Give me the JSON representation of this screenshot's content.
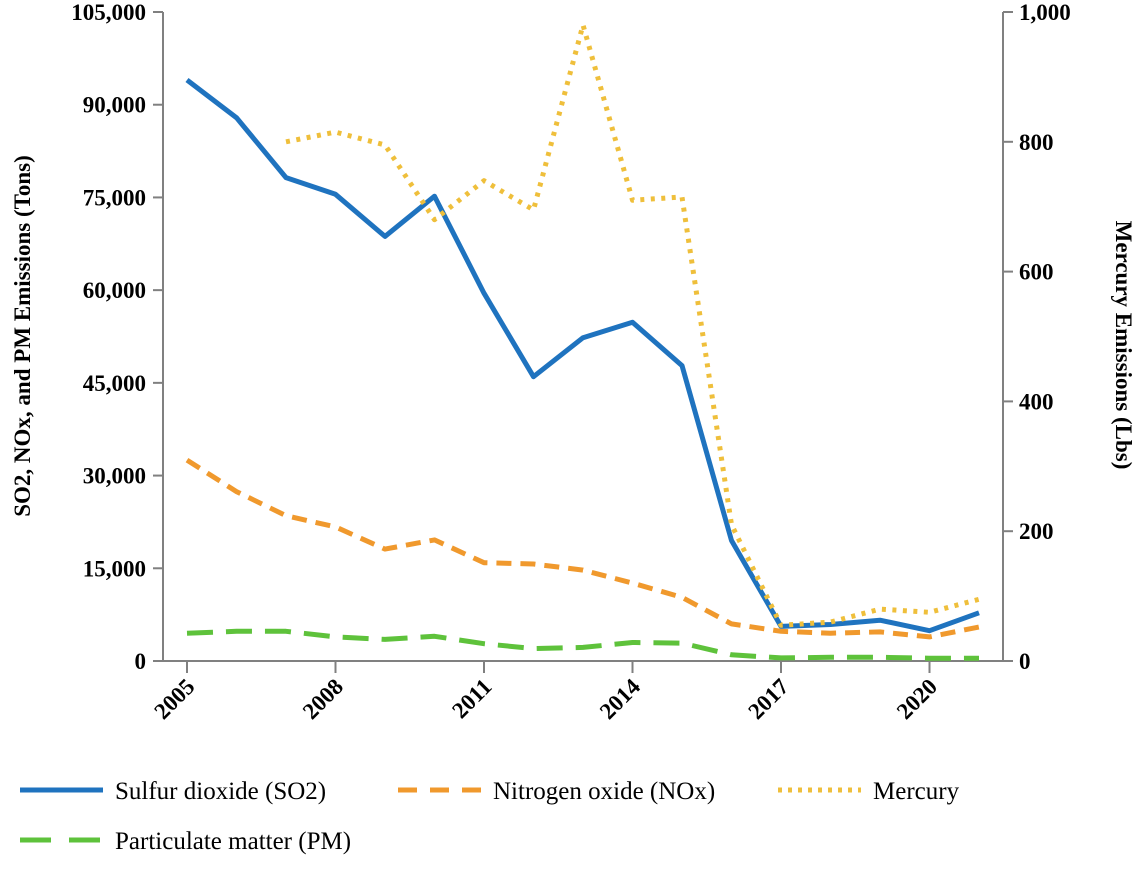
{
  "chart_data": {
    "type": "line",
    "title": "",
    "x": [
      2005,
      2006,
      2007,
      2008,
      2009,
      2010,
      2011,
      2012,
      2013,
      2014,
      2015,
      2016,
      2017,
      2018,
      2019,
      2020,
      2021
    ],
    "x_tick_years": [
      2005,
      2008,
      2011,
      2014,
      2017,
      2020
    ],
    "x_tick_labels": [
      "2005",
      "2008",
      "2011",
      "2014",
      "2017",
      "2020"
    ],
    "left_axis": {
      "label": "SO2, NOx, and PM Emissions (Tons)",
      "min": 0,
      "max": 105000,
      "tick_values": [
        0,
        15000,
        30000,
        45000,
        60000,
        75000,
        90000,
        105000
      ],
      "tick_labels": [
        "0",
        "15,000",
        "30,000",
        "45,000",
        "60,000",
        "75,000",
        "90,000",
        "105,000"
      ]
    },
    "right_axis": {
      "label": "Mercury Emissions (Lbs)",
      "min": 0,
      "max": 1000,
      "tick_values": [
        0,
        200,
        400,
        600,
        800,
        1000
      ],
      "tick_labels": [
        "0",
        "200",
        "400",
        "600",
        "800",
        "1,000"
      ]
    },
    "series": [
      {
        "name": "Sulfur dioxide (SO2)",
        "axis": "left",
        "style": "solid",
        "color": "#1F73BF",
        "values": [
          94000,
          87900,
          78200,
          75500,
          68700,
          75200,
          59500,
          46000,
          52300,
          54800,
          47800,
          19500,
          5600,
          5900,
          6600,
          4900,
          7800
        ]
      },
      {
        "name": "Nitrogen oxide (NOx)",
        "axis": "left",
        "style": "dashed",
        "color": "#F0992D",
        "values": [
          32500,
          27400,
          23500,
          21700,
          18100,
          19600,
          15900,
          15700,
          14700,
          12600,
          10300,
          6000,
          4800,
          4500,
          4700,
          3900,
          5500
        ]
      },
      {
        "name": "Mercury",
        "axis": "right",
        "style": "dotted",
        "color": "#EFBF3B",
        "values": [
          null,
          null,
          800,
          815,
          795,
          680,
          740,
          695,
          980,
          710,
          715,
          210,
          55,
          60,
          80,
          75,
          95
        ]
      },
      {
        "name": "Particulate matter (PM)",
        "axis": "left",
        "style": "long-dash",
        "color": "#5EC23B",
        "values": [
          4500,
          4800,
          4800,
          3900,
          3500,
          4000,
          2800,
          2000,
          2200,
          3000,
          2900,
          1000,
          500,
          600,
          600,
          450,
          450
        ]
      }
    ],
    "legend_position": "bottom",
    "axis_color": "#808080",
    "text_color": "#000000",
    "grid": false
  }
}
